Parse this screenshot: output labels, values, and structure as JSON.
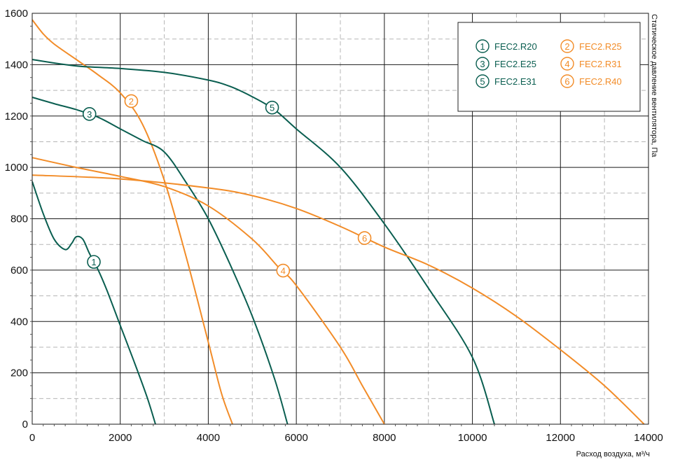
{
  "colors": {
    "orange": "#f28c28",
    "green": "#0a5e50",
    "grid_major": "#1a1a1a",
    "grid_minor": "#b5b5b5"
  },
  "chart_data": {
    "type": "line",
    "xlabel": "Расход воздуха, м³/ч",
    "ylabel": "Статическое давление вентилятора, Па",
    "xlim": [
      0,
      14000
    ],
    "ylim": [
      0,
      1600
    ],
    "x_ticks": [
      "0",
      "2000",
      "4000",
      "6000",
      "8000",
      "10000",
      "12000",
      "14000"
    ],
    "y_ticks": [
      "0",
      "200",
      "400",
      "600",
      "800",
      "1000",
      "1200",
      "1400",
      "1600"
    ],
    "grid": true,
    "legend_position": "top-right",
    "series": [
      {
        "id": "1",
        "name": "FEC2.R20",
        "color": "green",
        "marker_at": [
          1400,
          632
        ],
        "points": [
          [
            0,
            945
          ],
          [
            250,
            820
          ],
          [
            500,
            720
          ],
          [
            750,
            680
          ],
          [
            900,
            705
          ],
          [
            1000,
            730
          ],
          [
            1150,
            720
          ],
          [
            1300,
            665
          ],
          [
            1500,
            600
          ],
          [
            1700,
            520
          ],
          [
            2000,
            385
          ],
          [
            2300,
            250
          ],
          [
            2600,
            110
          ],
          [
            2800,
            0
          ]
        ]
      },
      {
        "id": "2",
        "name": "FEC2.R25",
        "color": "orange",
        "marker_at": [
          2250,
          1258
        ],
        "points": [
          [
            0,
            1575
          ],
          [
            250,
            1520
          ],
          [
            500,
            1480
          ],
          [
            1000,
            1420
          ],
          [
            1500,
            1360
          ],
          [
            2000,
            1290
          ],
          [
            2500,
            1170
          ],
          [
            3000,
            950
          ],
          [
            3500,
            650
          ],
          [
            4000,
            320
          ],
          [
            4300,
            120
          ],
          [
            4550,
            0
          ]
        ]
      },
      {
        "id": "3",
        "name": "FEC2.E25",
        "color": "green",
        "marker_at": [
          1300,
          1208
        ],
        "points": [
          [
            0,
            1273
          ],
          [
            500,
            1248
          ],
          [
            1000,
            1225
          ],
          [
            1500,
            1195
          ],
          [
            2000,
            1150
          ],
          [
            2500,
            1105
          ],
          [
            3000,
            1060
          ],
          [
            3500,
            940
          ],
          [
            4000,
            800
          ],
          [
            4500,
            620
          ],
          [
            5000,
            420
          ],
          [
            5500,
            180
          ],
          [
            5800,
            0
          ]
        ]
      },
      {
        "id": "4",
        "name": "FEC2.R31",
        "color": "orange",
        "marker_at": [
          5700,
          598
        ],
        "points": [
          [
            0,
            1038
          ],
          [
            1000,
            1000
          ],
          [
            2000,
            965
          ],
          [
            3000,
            925
          ],
          [
            4000,
            850
          ],
          [
            5000,
            720
          ],
          [
            5600,
            610
          ],
          [
            6000,
            540
          ],
          [
            7000,
            300
          ],
          [
            7500,
            150
          ],
          [
            8000,
            0
          ]
        ]
      },
      {
        "id": "5",
        "name": "FEC2.E31",
        "color": "green",
        "marker_at": [
          5450,
          1233
        ],
        "points": [
          [
            0,
            1420
          ],
          [
            1000,
            1395
          ],
          [
            2000,
            1385
          ],
          [
            3000,
            1370
          ],
          [
            4000,
            1340
          ],
          [
            4500,
            1315
          ],
          [
            5000,
            1275
          ],
          [
            5500,
            1225
          ],
          [
            6000,
            1150
          ],
          [
            7000,
            1000
          ],
          [
            8000,
            780
          ],
          [
            9000,
            530
          ],
          [
            10000,
            260
          ],
          [
            10500,
            0
          ]
        ]
      },
      {
        "id": "6",
        "name": "FEC2.R40",
        "color": "orange",
        "marker_at": [
          7550,
          725
        ],
        "points": [
          [
            0,
            970
          ],
          [
            2000,
            955
          ],
          [
            4000,
            920
          ],
          [
            5000,
            890
          ],
          [
            6000,
            840
          ],
          [
            7000,
            770
          ],
          [
            8000,
            690
          ],
          [
            9000,
            620
          ],
          [
            10000,
            530
          ],
          [
            11000,
            420
          ],
          [
            12000,
            290
          ],
          [
            13000,
            150
          ],
          [
            13900,
            0
          ]
        ]
      }
    ]
  },
  "legend": {
    "items": [
      {
        "id": "1",
        "num": "1",
        "label": "FEC2.R20",
        "color": "green"
      },
      {
        "id": "2",
        "num": "2",
        "label": "FEC2.R25",
        "color": "orange"
      },
      {
        "id": "3",
        "num": "3",
        "label": "FEC2.E25",
        "color": "green"
      },
      {
        "id": "4",
        "num": "4",
        "label": "FEC2.R31",
        "color": "orange"
      },
      {
        "id": "5",
        "num": "5",
        "label": "FEC2.E31",
        "color": "green"
      },
      {
        "id": "6",
        "num": "6",
        "label": "FEC2.R40",
        "color": "orange"
      }
    ]
  }
}
